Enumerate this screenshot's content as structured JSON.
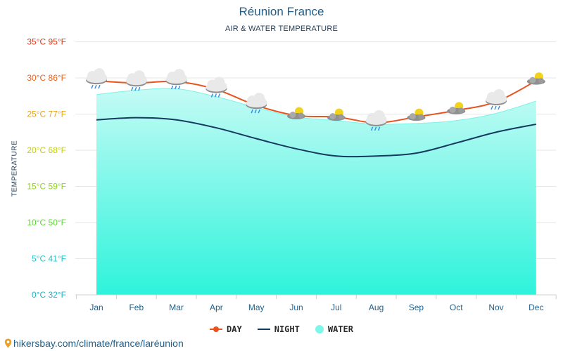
{
  "title": "Réunion France",
  "subtitle": "AIR & WATER TEMPERATURE",
  "y_axis_title": "TEMPERATURE",
  "footer_url": "hikersbay.com/climate/france/laréunion",
  "colors": {
    "day": "#e8531f",
    "night": "#163a5f",
    "water_fill_top": "#c4fbf5",
    "water_fill_bottom": "#2ef3db",
    "water_line": "#7ef2e6",
    "grid": "#e6e6e6",
    "title": "#1f5f8b"
  },
  "legend": [
    {
      "label": "DAY",
      "kind": "line-dot",
      "color": "#e8531f"
    },
    {
      "label": "NIGHT",
      "kind": "line",
      "color": "#163a5f"
    },
    {
      "label": "WATER",
      "kind": "circle",
      "color": "#7ef7ea"
    }
  ],
  "chart_data": {
    "type": "line",
    "title": "Réunion France",
    "subtitle": "AIR & WATER TEMPERATURE",
    "ylabel": "TEMPERATURE",
    "ylim": [
      0,
      35
    ],
    "grid": true,
    "legend_position": "bottom",
    "categories": [
      "Jan",
      "Feb",
      "Mar",
      "Apr",
      "May",
      "Jun",
      "Jul",
      "Aug",
      "Sep",
      "Oct",
      "Nov",
      "Dec"
    ],
    "y_ticks": [
      {
        "value": 0,
        "label": "0°C 32°F",
        "color": "#1fb6c9"
      },
      {
        "value": 5,
        "label": "5°C 41°F",
        "color": "#1fc8c8"
      },
      {
        "value": 10,
        "label": "10°C 50°F",
        "color": "#5fd43a"
      },
      {
        "value": 15,
        "label": "15°C 59°F",
        "color": "#8fd422"
      },
      {
        "value": 20,
        "label": "20°C 68°F",
        "color": "#c4cf10"
      },
      {
        "value": 25,
        "label": "25°C 77°F",
        "color": "#e8a617"
      },
      {
        "value": 30,
        "label": "30°C 86°F",
        "color": "#e8641b"
      },
      {
        "value": 35,
        "label": "35°C 95°F",
        "color": "#d93a1a"
      }
    ],
    "series": [
      {
        "name": "DAY",
        "values": [
          29.6,
          29.3,
          29.5,
          28.4,
          26.2,
          24.8,
          24.6,
          23.8,
          24.6,
          25.5,
          26.7,
          29.6
        ]
      },
      {
        "name": "NIGHT",
        "values": [
          24.2,
          24.5,
          24.2,
          23.1,
          21.6,
          20.2,
          19.2,
          19.2,
          19.6,
          21.0,
          22.5,
          23.6
        ]
      },
      {
        "name": "WATER",
        "values": [
          27.7,
          28.3,
          28.5,
          27.4,
          25.9,
          24.6,
          24.1,
          23.6,
          23.7,
          24.1,
          25.1,
          26.8
        ]
      }
    ],
    "weather_icons": [
      "rain-cloud-icon",
      "rain-cloud-icon",
      "rain-cloud-icon",
      "rain-cloud-icon",
      "rain-cloud-icon",
      "partly-sunny-icon",
      "partly-sunny-icon",
      "rain-cloud-icon",
      "partly-sunny-icon",
      "partly-sunny-icon",
      "rain-cloud-icon",
      "partly-sunny-icon"
    ]
  }
}
